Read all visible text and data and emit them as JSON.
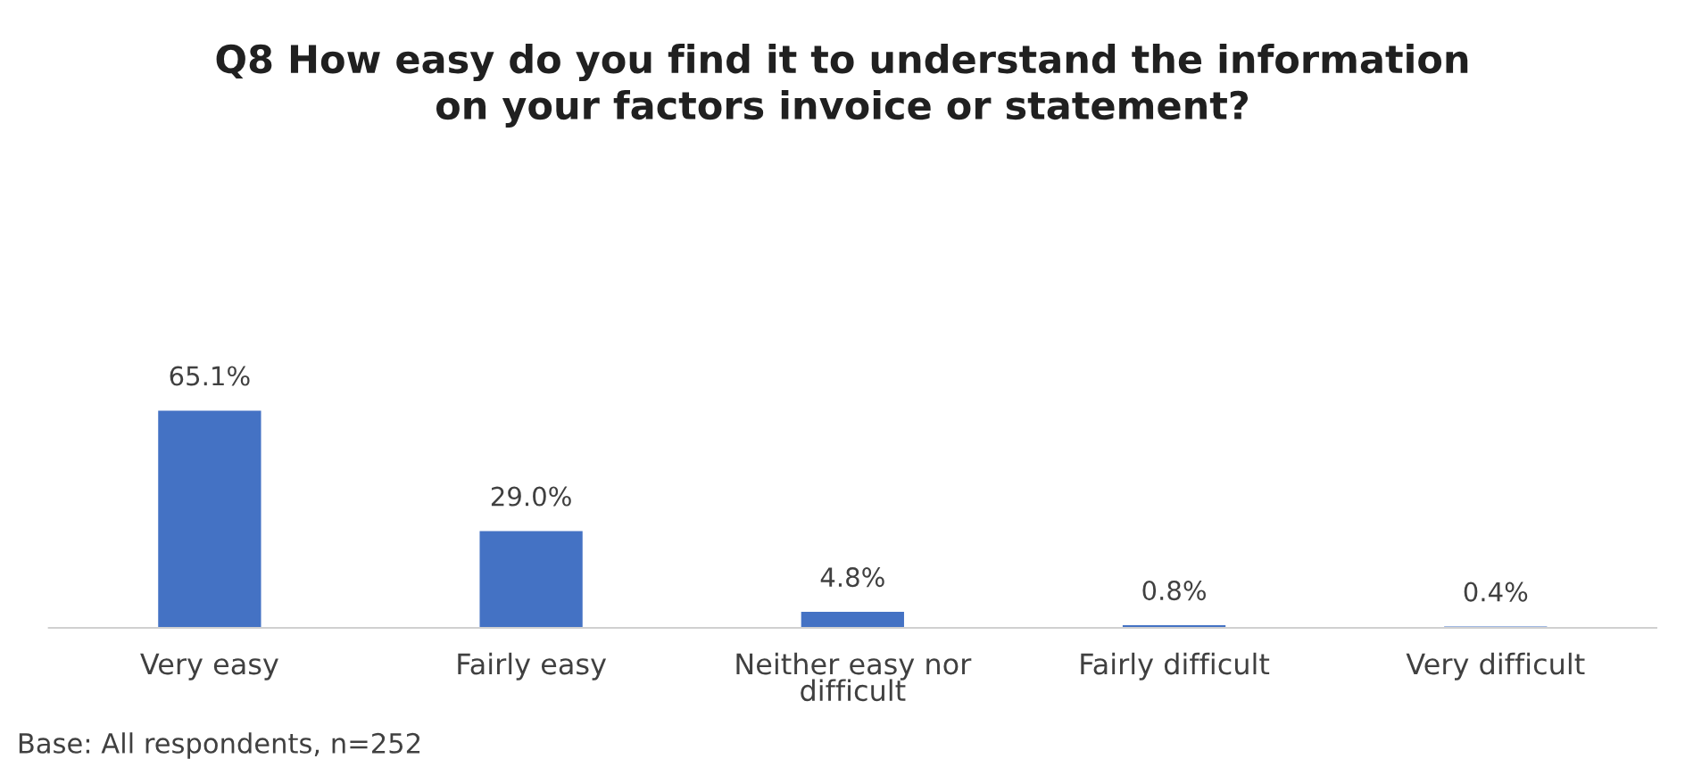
{
  "chart_data": {
    "type": "bar",
    "title": "Q8 How easy do you find it to understand the information\non your factors invoice or statement?",
    "categories": [
      "Very easy",
      "Fairly easy",
      "Neither easy nor\ndifficult",
      "Fairly difficult",
      "Very difficult"
    ],
    "values": [
      65.1,
      29.0,
      4.8,
      0.8,
      0.4
    ],
    "value_labels": [
      "65.1%",
      "29.0%",
      "4.8%",
      "0.8%",
      "0.4%"
    ],
    "color": "#4472c4",
    "grid": false,
    "legend": false,
    "tick_labels": "x",
    "annotations": [
      "Base: All respondents, n=252"
    ]
  }
}
